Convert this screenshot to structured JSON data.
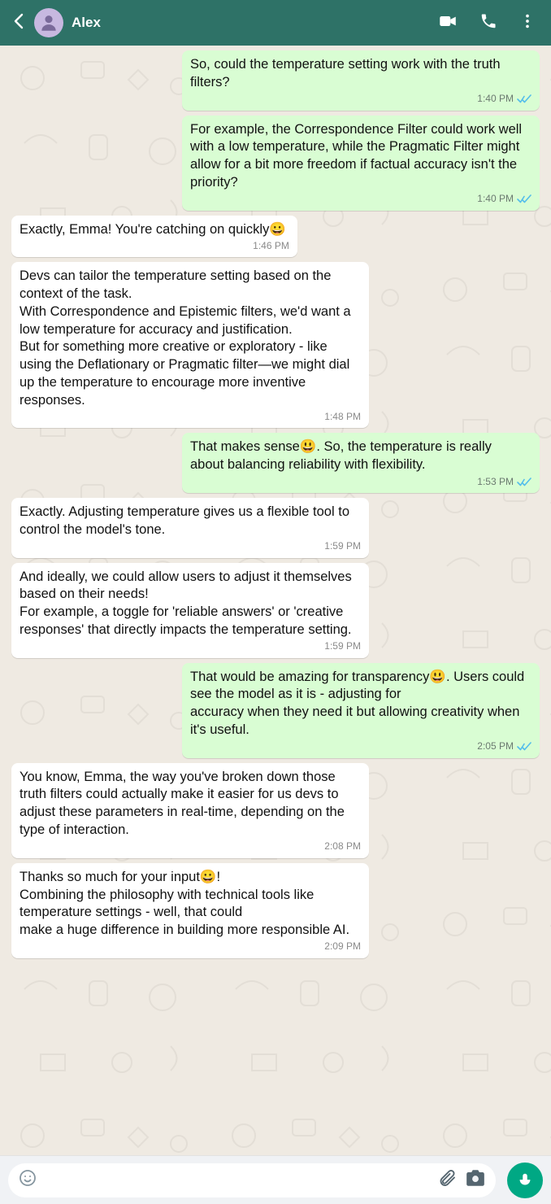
{
  "colors": {
    "header_bg": "#2e7267",
    "chat_bg": "#efeae2",
    "bubble_out": "#d9fdd3",
    "bubble_in": "#ffffff",
    "mic_bg": "#00a884",
    "check_color": "#53bdeb",
    "avatar_bg": "#c7b8e0"
  },
  "header": {
    "contact_name": "Alex"
  },
  "input": {
    "placeholder": ""
  },
  "messages": [
    {
      "side": "out",
      "text": "So, could the temperature setting work with the truth filters?",
      "time": "1:40 PM",
      "read": true
    },
    {
      "side": "out",
      "text": "For example, the Correspondence Filter could work well with a low temperature, while the Pragmatic Filter might allow for a bit more freedom if factual accuracy isn't the priority?",
      "time": "1:40 PM",
      "read": true
    },
    {
      "side": "in",
      "text": "Exactly, Emma! You're catching on quickly😀",
      "time": "1:46 PM"
    },
    {
      "side": "in",
      "text": "Devs can tailor the temperature setting based on the context of the task.\nWith Correspondence and Epistemic filters, we'd want a low temperature for accuracy and justification.\nBut for something more creative or exploratory - like using the Deflationary or Pragmatic filter—we might dial up the temperature to encourage more inventive responses.",
      "time": "1:48 PM"
    },
    {
      "side": "out",
      "text": "That makes sense😃. So, the temperature is really about balancing reliability with flexibility.",
      "time": "1:53 PM",
      "read": true
    },
    {
      "side": "in",
      "text": "Exactly. Adjusting temperature gives us a flexible tool to control the model's tone.",
      "time": "1:59 PM"
    },
    {
      "side": "in",
      "text": "And ideally, we could allow users to adjust it themselves based on their needs!\nFor example, a toggle for 'reliable answers' or 'creative responses' that directly impacts the temperature setting.",
      "time": "1:59 PM"
    },
    {
      "side": "out",
      "text": "That would be amazing for transparency😃. Users could see the model as it is - adjusting for\naccuracy when they need it but allowing creativity when it's useful.",
      "time": "2:05 PM",
      "read": true
    },
    {
      "side": "in",
      "text": "You know, Emma, the way you've broken down those truth filters could actually make it easier for us devs to adjust these parameters in real-time, depending on the type of interaction.",
      "time": "2:08 PM"
    },
    {
      "side": "in",
      "text": "Thanks so much for your input😀!\nCombining the philosophy with technical tools like temperature settings - well, that could\nmake a huge difference in building more responsible AI.",
      "time": "2:09 PM"
    }
  ]
}
